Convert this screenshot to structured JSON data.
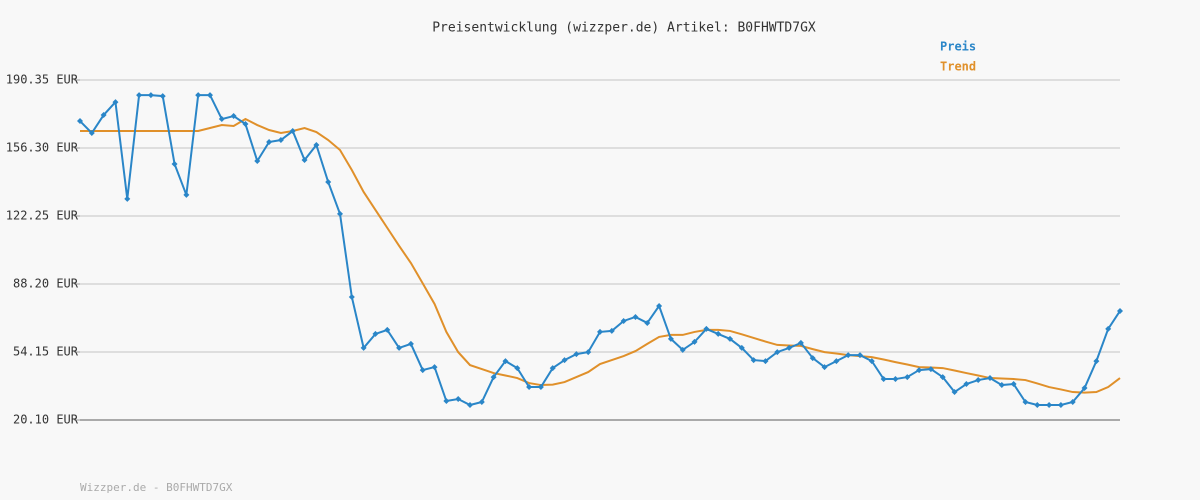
{
  "chart_data": {
    "type": "line",
    "title": "Preisentwicklung (wizzper.de) Artikel: B0FHWTD7GX",
    "footer": "Wizzper.de - B0FHWTD7GX",
    "ylim": [
      20.1,
      190.35
    ],
    "yticks": [
      {
        "value": 20.1,
        "label": "20.10 EUR"
      },
      {
        "value": 54.15,
        "label": "54.15 EUR"
      },
      {
        "value": 88.2,
        "label": "88.20 EUR"
      },
      {
        "value": 122.25,
        "label": "122.25 EUR"
      },
      {
        "value": 156.3,
        "label": "156.30 EUR"
      },
      {
        "value": 190.35,
        "label": "190.35 EUR"
      }
    ],
    "grid": true,
    "legend": "top-right",
    "series": [
      {
        "name": "Preis",
        "color": "#2a86c8",
        "markers": true,
        "values": [
          169.8,
          163.8,
          172.8,
          179.3,
          130.8,
          182.8,
          182.8,
          182.3,
          148.3,
          132.8,
          182.8,
          182.8,
          170.8,
          172.3,
          168.3,
          149.8,
          159.3,
          160.3,
          164.8,
          150.3,
          157.8,
          139.3,
          123.3,
          81.7,
          56.2,
          63.2,
          65.2,
          56.2,
          58.2,
          45.1,
          46.6,
          29.6,
          30.6,
          27.6,
          29.1,
          41.6,
          49.6,
          46.1,
          36.6,
          36.6,
          46.1,
          50.1,
          53.1,
          54.1,
          64.2,
          64.7,
          69.7,
          71.7,
          68.7,
          77.2,
          60.7,
          55.2,
          59.2,
          65.7,
          63.2,
          60.7,
          56.2,
          50.1,
          49.6,
          54.1,
          56.2,
          58.7,
          51.1,
          46.6,
          49.6,
          52.6,
          52.6,
          49.6,
          40.6,
          40.6,
          41.6,
          45.1,
          45.6,
          41.6,
          34.1,
          38.1,
          40.1,
          41.1,
          37.6,
          38.1,
          29.1,
          27.6,
          27.6,
          27.6,
          29.1,
          36.1,
          49.6,
          65.7,
          74.7
        ]
      },
      {
        "name": "Trend",
        "color": "#e0902a",
        "markers": false,
        "values": [
          164.8,
          164.8,
          164.8,
          164.8,
          164.8,
          164.8,
          164.8,
          164.8,
          164.8,
          164.8,
          164.8,
          166.3,
          167.8,
          167.3,
          170.8,
          167.8,
          165.3,
          163.8,
          164.8,
          166.3,
          164.3,
          160.3,
          155.3,
          145.3,
          134.3,
          125.3,
          116.3,
          107.3,
          98.7,
          88.5,
          78.2,
          64.2,
          54.1,
          47.6,
          45.6,
          43.6,
          42.4,
          41.1,
          38.6,
          37.6,
          37.8,
          39.1,
          41.6,
          44.1,
          48.1,
          50.1,
          52.1,
          54.6,
          58.2,
          61.7,
          62.7,
          62.7,
          64.2,
          65.2,
          65.2,
          64.7,
          63.0,
          61.2,
          59.4,
          57.7,
          57.4,
          57.2,
          55.6,
          54.1,
          53.4,
          52.6,
          52.1,
          51.6,
          50.4,
          49.1,
          47.9,
          46.6,
          46.4,
          46.1,
          44.9,
          43.6,
          42.4,
          41.1,
          40.9,
          40.6,
          40.1,
          38.4,
          36.6,
          35.4,
          34.1,
          33.8,
          34.1,
          36.6,
          41.1
        ]
      }
    ]
  }
}
